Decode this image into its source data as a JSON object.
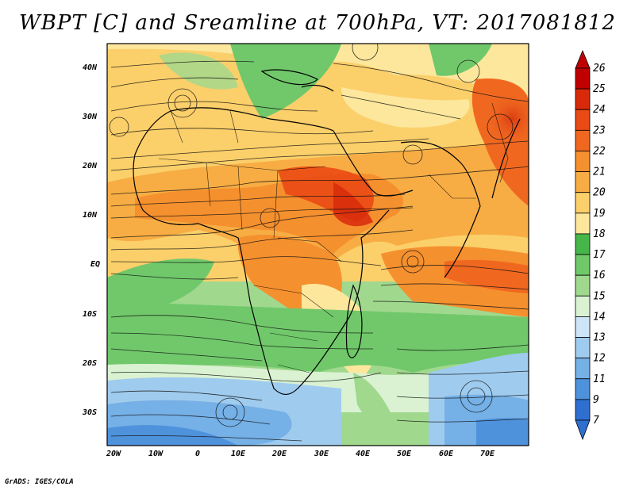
{
  "title": "WBPT [C] and Sreamline at 700hPa, VT: 2017081812",
  "credit": "GrADS: IGES/COLA",
  "lat_labels": [
    "40N",
    "30N",
    "20N",
    "10N",
    "EQ",
    "10S",
    "20S",
    "30S"
  ],
  "lon_labels": [
    "20W",
    "10W",
    "0",
    "10E",
    "20E",
    "30E",
    "40E",
    "50E",
    "60E",
    "70E"
  ],
  "colorbar": {
    "labels": [
      "26",
      "25",
      "24",
      "23",
      "22",
      "21",
      "20",
      "19",
      "18",
      "17",
      "16",
      "15",
      "14",
      "13",
      "12",
      "11",
      "9",
      "7"
    ],
    "colors": [
      "#c00000",
      "#d82a0a",
      "#ea4a14",
      "#f06820",
      "#f5902e",
      "#f7ad44",
      "#fbcf6a",
      "#fde79c",
      "#47b64a",
      "#70c86a",
      "#a0d88e",
      "#daf2d2",
      "#cde5f7",
      "#9fcbee",
      "#75b0e6",
      "#4f92dc",
      "#2f6fd0"
    ]
  }
}
